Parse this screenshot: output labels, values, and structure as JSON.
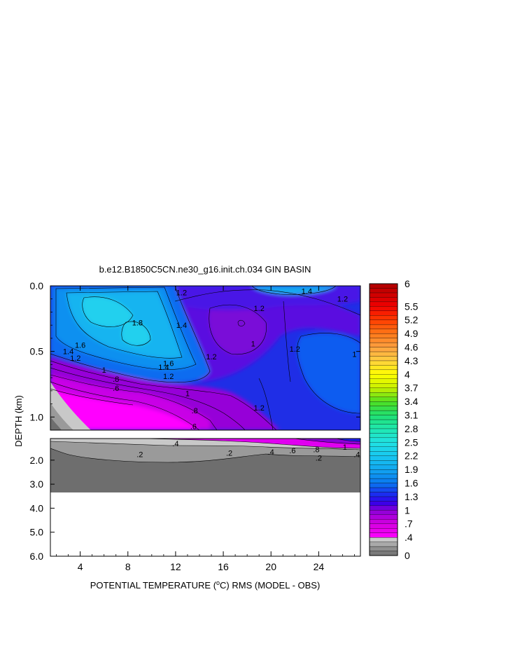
{
  "chart_data": {
    "type": "heatmap",
    "title": "b.e12.B1850C5CN.ne30_g16.init.ch.034 GIN BASIN",
    "xlabel": {
      "prefix": "POTENTIAL TEMPERATURE (",
      "degree": "o",
      "suffix": "C) RMS (MODEL - OBS)"
    },
    "ylabel": "DEPTH (km)",
    "x_ticks": [
      "4",
      "8",
      "12",
      "16",
      "20",
      "24"
    ],
    "x_tick_values": [
      4,
      8,
      12,
      16,
      20,
      24
    ],
    "xlim": [
      1.5,
      27.5
    ],
    "upper_panel": {
      "ylim": [
        0.0,
        1.1
      ],
      "y_ticks": [
        "0.0",
        "0.5",
        "1.0"
      ],
      "y_tick_values": [
        0.0,
        0.5,
        1.0
      ],
      "contour_labels": [
        {
          "text": "1.2",
          "x": 12.5,
          "y": 0.05
        },
        {
          "text": "1.4",
          "x": 23.0,
          "y": 0.04
        },
        {
          "text": "1.2",
          "x": 26.0,
          "y": 0.1
        },
        {
          "text": "1.2",
          "x": 19.0,
          "y": 0.17
        },
        {
          "text": "1.8",
          "x": 8.8,
          "y": 0.28
        },
        {
          "text": "1.4",
          "x": 12.5,
          "y": 0.3
        },
        {
          "text": "1",
          "x": 18.5,
          "y": 0.44
        },
        {
          "text": "1.2",
          "x": 22.0,
          "y": 0.48
        },
        {
          "text": "1.2",
          "x": 15.0,
          "y": 0.54
        },
        {
          "text": "1.6",
          "x": 4.0,
          "y": 0.45
        },
        {
          "text": "1.4",
          "x": 3.0,
          "y": 0.5
        },
        {
          "text": "1.2",
          "x": 3.6,
          "y": 0.55
        },
        {
          "text": "1.6",
          "x": 11.4,
          "y": 0.59
        },
        {
          "text": "1.4",
          "x": 11.0,
          "y": 0.62
        },
        {
          "text": "1.2",
          "x": 11.4,
          "y": 0.69
        },
        {
          "text": "1",
          "x": 6.0,
          "y": 0.64
        },
        {
          "text": ".8",
          "x": 7.0,
          "y": 0.71
        },
        {
          "text": ".6",
          "x": 7.0,
          "y": 0.78
        },
        {
          "text": "1",
          "x": 13.0,
          "y": 0.82
        },
        {
          "text": ".8",
          "x": 13.6,
          "y": 0.95
        },
        {
          "text": ".6",
          "x": 13.5,
          "y": 1.07
        },
        {
          "text": "1.2",
          "x": 19.0,
          "y": 0.93
        },
        {
          "text": "1",
          "x": 27.0,
          "y": 0.52
        }
      ]
    },
    "lower_panel": {
      "ylim": [
        1.1,
        6.0
      ],
      "y_ticks": [
        "2.0",
        "3.0",
        "4.0",
        "5.0",
        "6.0"
      ],
      "y_tick_values": [
        2.0,
        3.0,
        4.0,
        5.0,
        6.0
      ],
      "data_bottom_depth_km": 3.4,
      "contour_labels": [
        {
          "text": ".4",
          "x": 12.0,
          "y": 1.3
        },
        {
          "text": ".2",
          "x": 9.0,
          "y": 1.75
        },
        {
          "text": ".2",
          "x": 16.5,
          "y": 1.7
        },
        {
          "text": ".4",
          "x": 20.0,
          "y": 1.65
        },
        {
          "text": ".6",
          "x": 21.8,
          "y": 1.6
        },
        {
          "text": ".8",
          "x": 23.8,
          "y": 1.55
        },
        {
          "text": ".2",
          "x": 24.0,
          "y": 1.9
        },
        {
          "text": "1",
          "x": 26.2,
          "y": 1.45
        },
        {
          "text": ".4",
          "x": 27.2,
          "y": 1.75
        }
      ]
    },
    "colorbar": {
      "min": 0,
      "max": 6,
      "labels": [
        "6",
        "5.5",
        "5.2",
        "4.9",
        "4.6",
        "4.3",
        "4",
        "3.7",
        "3.4",
        "3.1",
        "2.8",
        "2.5",
        "2.2",
        "1.9",
        "1.6",
        "1.3",
        "1",
        ".7",
        ".4",
        "0"
      ],
      "label_values": [
        6,
        5.5,
        5.2,
        4.9,
        4.6,
        4.3,
        4,
        3.7,
        3.4,
        3.1,
        2.8,
        2.5,
        2.2,
        1.9,
        1.6,
        1.3,
        1,
        0.7,
        0.4,
        0
      ],
      "color_stops": [
        {
          "v": 0.0,
          "c": "#6e6e6e"
        },
        {
          "v": 0.2,
          "c": "#9a9a9a"
        },
        {
          "v": 0.35,
          "c": "#c8c8c8"
        },
        {
          "v": 0.4,
          "c": "#ff00ff"
        },
        {
          "v": 0.7,
          "c": "#d400e0"
        },
        {
          "v": 1.0,
          "c": "#8a00d8"
        },
        {
          "v": 1.15,
          "c": "#3c00e8"
        },
        {
          "v": 1.3,
          "c": "#1e1ef0"
        },
        {
          "v": 1.6,
          "c": "#0a78f0"
        },
        {
          "v": 1.9,
          "c": "#12a6f0"
        },
        {
          "v": 2.2,
          "c": "#18c8f0"
        },
        {
          "v": 2.5,
          "c": "#20e2e2"
        },
        {
          "v": 2.8,
          "c": "#20e8b0"
        },
        {
          "v": 3.1,
          "c": "#20e070"
        },
        {
          "v": 3.4,
          "c": "#50e020"
        },
        {
          "v": 3.7,
          "c": "#c8f000"
        },
        {
          "v": 4.0,
          "c": "#ffff00"
        },
        {
          "v": 4.3,
          "c": "#ffd040"
        },
        {
          "v": 4.6,
          "c": "#ffa040"
        },
        {
          "v": 4.9,
          "c": "#ff7818"
        },
        {
          "v": 5.2,
          "c": "#ff3c00"
        },
        {
          "v": 5.5,
          "c": "#f00000"
        },
        {
          "v": 6.0,
          "c": "#b00000"
        }
      ]
    }
  }
}
